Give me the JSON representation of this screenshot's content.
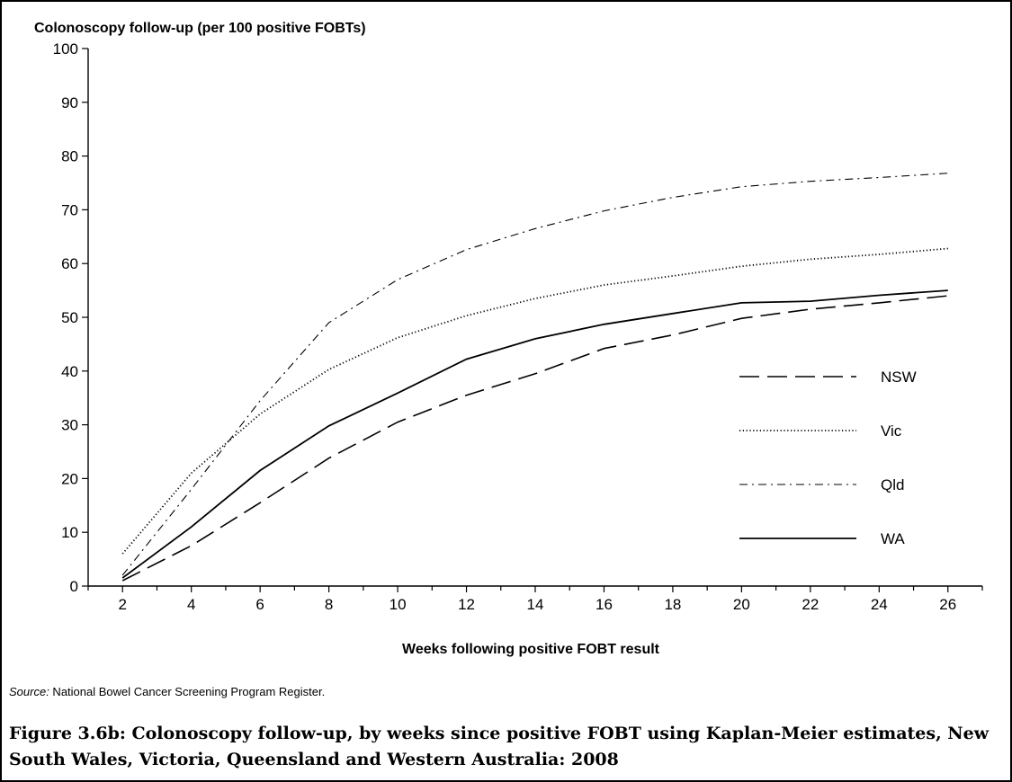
{
  "chart_data": {
    "type": "line",
    "ylabel": "Colonoscopy follow-up (per 100 positive FOBTs)",
    "xlabel": "Weeks following positive FOBT result",
    "ylim": [
      0,
      100
    ],
    "yticks": [
      "0",
      "10",
      "20",
      "30",
      "40",
      "50",
      "60",
      "70",
      "80",
      "90",
      "100"
    ],
    "xlim": [
      1,
      27
    ],
    "x": [
      2,
      4,
      6,
      8,
      10,
      12,
      14,
      16,
      18,
      20,
      22,
      24,
      26
    ],
    "xticks": [
      "2",
      "4",
      "6",
      "8",
      "10",
      "12",
      "14",
      "16",
      "18",
      "20",
      "22",
      "24",
      "26"
    ],
    "grid": false,
    "legend_position": "right",
    "series": [
      {
        "name": "NSW",
        "style": "long-dash",
        "values": [
          1,
          7.5,
          15.5,
          23.8,
          30.5,
          35.5,
          39.5,
          44.2,
          46.7,
          49.8,
          51.5,
          52.7,
          54
        ]
      },
      {
        "name": "Vic",
        "style": "dotted",
        "values": [
          6,
          21,
          32,
          40.3,
          46.2,
          50.3,
          53.5,
          56,
          57.7,
          59.5,
          60.8,
          61.7,
          62.8
        ]
      },
      {
        "name": "Qld",
        "style": "dash-dot",
        "values": [
          2,
          18,
          34.5,
          49,
          57,
          62.6,
          66.5,
          69.8,
          72.3,
          74.3,
          75.3,
          76,
          76.8
        ]
      },
      {
        "name": "WA",
        "style": "solid",
        "values": [
          1.5,
          11,
          21.5,
          29.8,
          35.9,
          42.2,
          46,
          48.7,
          50.7,
          52.7,
          53,
          54.1,
          55
        ]
      }
    ]
  },
  "source": {
    "label": "Source:",
    "text": " National Bowel Cancer Screening Program Register."
  },
  "caption": "Figure 3.6b: Colonoscopy follow-up, by weeks since positive FOBT using Kaplan-Meier estimates, New South Wales, Victoria, Queensland and Western Australia: 2008"
}
